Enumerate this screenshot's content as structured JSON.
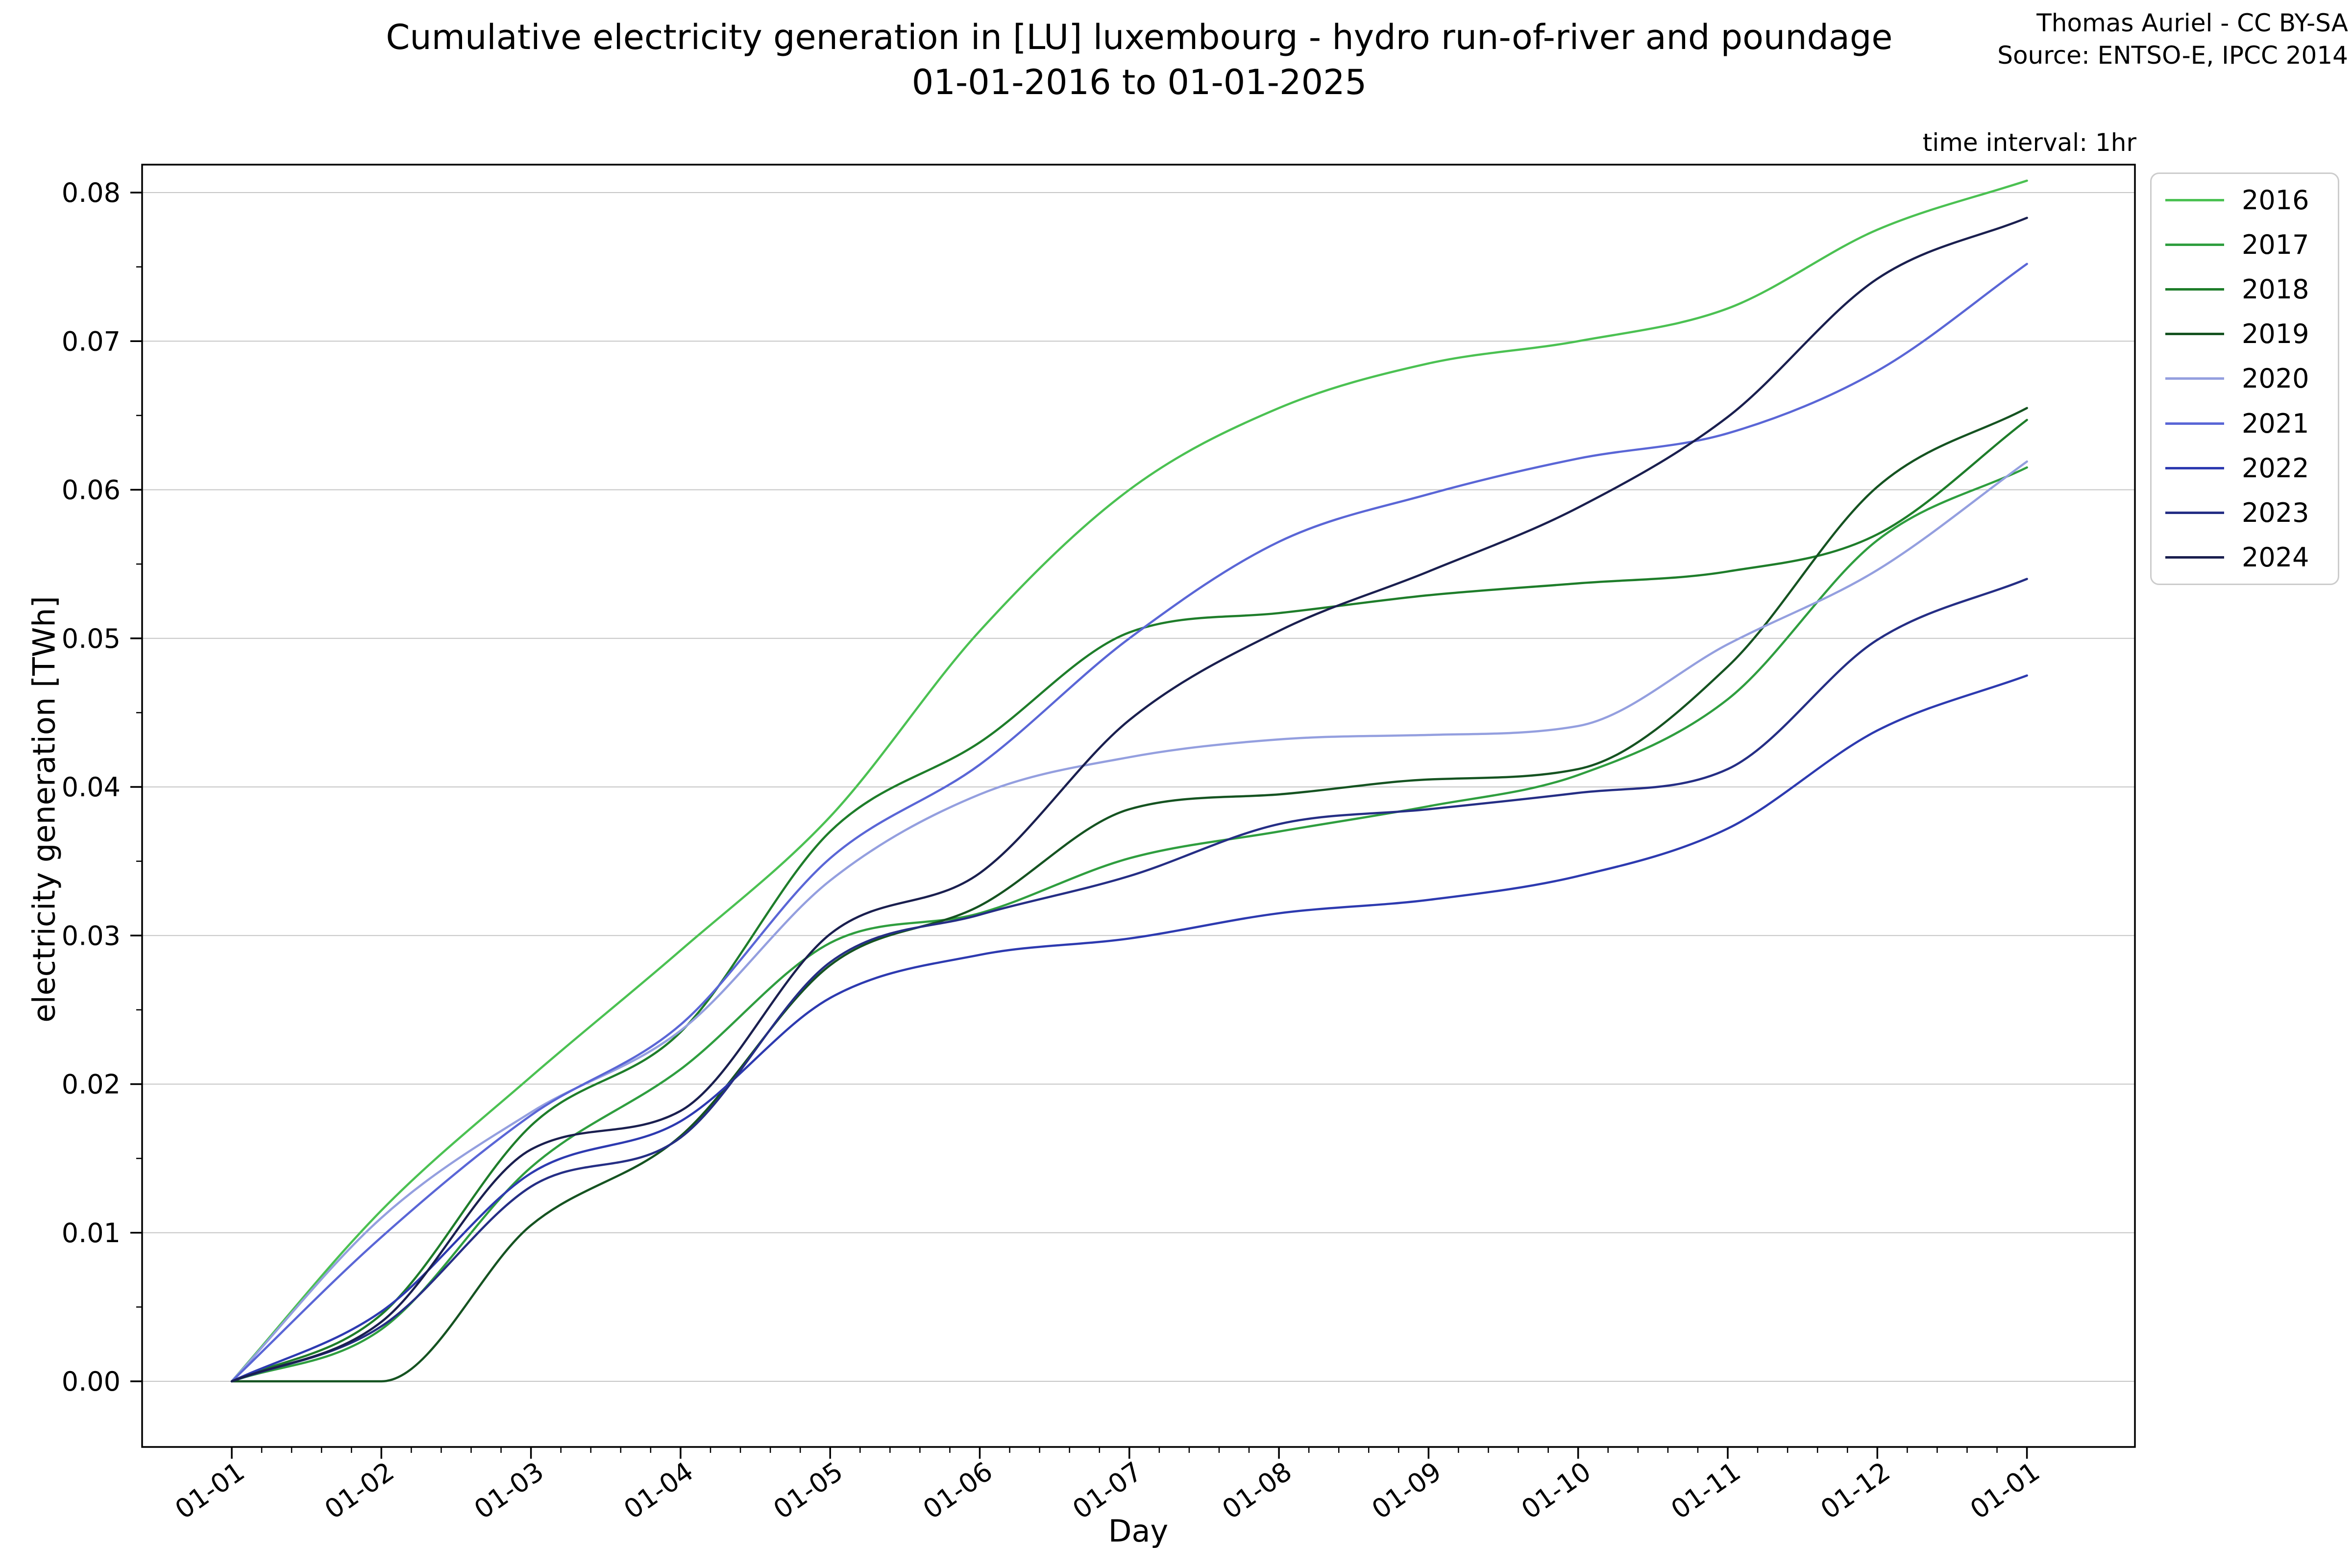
{
  "header": {
    "title_line1": "Cumulative electricity generation in [LU] luxembourg - hydro run-of-river and poundage",
    "title_line2": "01-01-2016 to 01-01-2025",
    "attribution_line1": "Thomas Auriel - CC BY-SA",
    "attribution_line2": "Source: ENTSO-E, IPCC 2014",
    "time_interval_note": "time interval: 1hr"
  },
  "axes": {
    "xlabel": "Day",
    "ylabel": "electricity generation [TWh]"
  },
  "chart_data": {
    "type": "line",
    "title": "Cumulative electricity generation in [LU] luxembourg - hydro run-of-river and poundage 01-01-2016 to 01-01-2025",
    "xlabel": "Day",
    "ylabel": "electricity generation [TWh]",
    "x_tick_labels": [
      "01-01",
      "01-02",
      "01-03",
      "01-04",
      "01-05",
      "01-06",
      "01-07",
      "01-08",
      "01-09",
      "01-10",
      "01-11",
      "01-12",
      "01-01"
    ],
    "y_tick_labels": [
      "0.00",
      "0.01",
      "0.02",
      "0.03",
      "0.04",
      "0.05",
      "0.06",
      "0.07",
      "0.08"
    ],
    "ylim": [
      0.0,
      0.08
    ],
    "grid": "horizontal",
    "legend_position": "upper right",
    "x_months": [
      0,
      1,
      2,
      3,
      4,
      5,
      6,
      7,
      8,
      9,
      10,
      11,
      12
    ],
    "series": [
      {
        "name": "2016",
        "color": "#4bc152",
        "values": [
          0.0,
          0.0115,
          0.0205,
          0.029,
          0.038,
          0.0505,
          0.06,
          0.0655,
          0.0685,
          0.07,
          0.0722,
          0.0775,
          0.0808
        ]
      },
      {
        "name": "2017",
        "color": "#2f9e3f",
        "values": [
          0.0,
          0.0035,
          0.0144,
          0.021,
          0.0295,
          0.0315,
          0.0352,
          0.037,
          0.0387,
          0.0408,
          0.0459,
          0.0566,
          0.0615
        ]
      },
      {
        "name": "2018",
        "color": "#1e7d2a",
        "values": [
          0.0,
          0.0045,
          0.0172,
          0.0235,
          0.037,
          0.043,
          0.0504,
          0.0517,
          0.0529,
          0.0537,
          0.0545,
          0.057,
          0.0647
        ]
      },
      {
        "name": "2019",
        "color": "#155321",
        "values": [
          0.0,
          0.0,
          0.0105,
          0.0165,
          0.028,
          0.032,
          0.0385,
          0.0395,
          0.0405,
          0.0412,
          0.0481,
          0.0602,
          0.0655
        ]
      },
      {
        "name": "2020",
        "color": "#949fdf",
        "values": [
          0.0,
          0.011,
          0.0181,
          0.0236,
          0.0337,
          0.0395,
          0.042,
          0.0432,
          0.0435,
          0.0441,
          0.0496,
          0.0546,
          0.0619
        ]
      },
      {
        "name": "2021",
        "color": "#5a66d6",
        "values": [
          0.0,
          0.0097,
          0.0179,
          0.024,
          0.0352,
          0.0415,
          0.05,
          0.0565,
          0.0597,
          0.0621,
          0.0638,
          0.068,
          0.0752
        ]
      },
      {
        "name": "2022",
        "color": "#2d3ab0",
        "values": [
          0.0,
          0.0047,
          0.014,
          0.0175,
          0.0258,
          0.0287,
          0.0298,
          0.0315,
          0.0324,
          0.034,
          0.0372,
          0.0438,
          0.0475
        ]
      },
      {
        "name": "2023",
        "color": "#252e85",
        "values": [
          0.0,
          0.0037,
          0.0131,
          0.0164,
          0.0282,
          0.0314,
          0.034,
          0.0375,
          0.0385,
          0.0396,
          0.0412,
          0.0499,
          0.054
        ]
      },
      {
        "name": "2024",
        "color": "#1a1f4f",
        "values": [
          0.0,
          0.004,
          0.0156,
          0.0182,
          0.0301,
          0.0342,
          0.0445,
          0.0505,
          0.0545,
          0.0588,
          0.0649,
          0.0742,
          0.0783
        ]
      }
    ]
  }
}
